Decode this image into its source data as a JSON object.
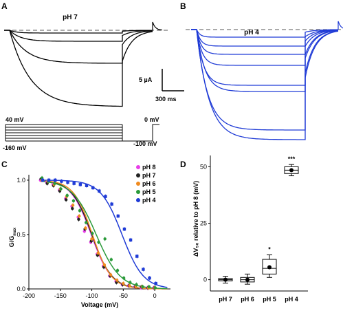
{
  "panels": {
    "a": {
      "letter": "A",
      "title": "pH 7"
    },
    "b": {
      "letter": "B",
      "title": "pH 4"
    },
    "c": {
      "letter": "C"
    },
    "d": {
      "letter": "D"
    }
  },
  "scale_bar": {
    "current": "5 µA",
    "time": "300 ms"
  },
  "protocol": {
    "v_start": "40 mV",
    "v_end": "-160 mV",
    "v_tail": "0 mV",
    "v_hold": "-100 mV"
  },
  "colors": {
    "ph8": "#e83ee8",
    "ph7": "#222222",
    "ph6": "#f08a1e",
    "ph5": "#2a9a3a",
    "ph4": "#1f3bd6",
    "trace_a": "#000000",
    "trace_b": "#1f3bd6"
  },
  "chart_data": [
    {
      "type": "scatter",
      "panel": "C",
      "xlabel": "Voltage (mV)",
      "ylabel_main": "G/G",
      "ylabel_sub": "max",
      "xlim": [
        -200,
        25
      ],
      "ylim": [
        0,
        1.05
      ],
      "xticks": [
        -200,
        -150,
        -100,
        -50,
        0
      ],
      "yticks": [
        0.0,
        0.5,
        1.0
      ],
      "xtick_labels": [
        "-200",
        "-150",
        "-100",
        "-50",
        "0"
      ],
      "ytick_labels": [
        "0.0",
        "0.5",
        "1.0"
      ],
      "legend_position": "top-right",
      "series": [
        {
          "name": "pH 8",
          "color": "#e83ee8",
          "v_half": -101,
          "slope": 16,
          "x": [
            -180,
            -170,
            -160,
            -150,
            -140,
            -130,
            -120,
            -110,
            -100,
            -90,
            -80,
            -70,
            -60,
            -50,
            -40,
            -30,
            -20,
            -10,
            0
          ],
          "y": [
            1.0,
            0.98,
            0.96,
            0.91,
            0.83,
            0.76,
            0.66,
            0.53,
            0.43,
            0.32,
            0.21,
            0.12,
            0.07,
            0.04,
            0.03,
            0.02,
            0.01,
            0.01,
            0.01
          ]
        },
        {
          "name": "pH 7",
          "color": "#222222",
          "v_half": -100,
          "slope": 16,
          "x": [
            -180,
            -170,
            -160,
            -150,
            -140,
            -130,
            -120,
            -110,
            -100,
            -90,
            -80,
            -70,
            -60,
            -50,
            -40,
            -30,
            -20,
            -10,
            0
          ],
          "y": [
            1.01,
            0.97,
            0.95,
            0.9,
            0.82,
            0.74,
            0.64,
            0.55,
            0.44,
            0.31,
            0.2,
            0.12,
            0.06,
            0.04,
            0.03,
            0.02,
            0.02,
            0.01,
            0.01
          ]
        },
        {
          "name": "pH 6",
          "color": "#f08a1e",
          "v_half": -99,
          "slope": 15,
          "x": [
            -180,
            -170,
            -160,
            -150,
            -140,
            -130,
            -120,
            -110,
            -100,
            -90,
            -80,
            -70,
            -60,
            -50,
            -40,
            -30,
            -20,
            -10,
            0
          ],
          "y": [
            1.0,
            0.99,
            0.96,
            0.92,
            0.85,
            0.77,
            0.67,
            0.56,
            0.46,
            0.33,
            0.22,
            0.13,
            0.08,
            0.05,
            0.03,
            0.02,
            0.02,
            0.01,
            0.01
          ]
        },
        {
          "name": "pH 5",
          "color": "#2a9a3a",
          "v_half": -93,
          "slope": 19,
          "x": [
            -180,
            -170,
            -160,
            -150,
            -140,
            -130,
            -120,
            -110,
            -100,
            -90,
            -80,
            -70,
            -60,
            -50,
            -40,
            -30,
            -20,
            -10,
            0
          ],
          "y": [
            1.02,
            0.99,
            0.97,
            0.92,
            0.86,
            0.81,
            0.72,
            0.61,
            0.51,
            0.43,
            0.46,
            0.27,
            0.17,
            0.1,
            0.06,
            0.04,
            0.02,
            0.02,
            0.01
          ]
        },
        {
          "name": "pH 4",
          "color": "#1f3bd6",
          "v_half": -52,
          "slope": 17,
          "x": [
            -180,
            -170,
            -160,
            -150,
            -140,
            -130,
            -120,
            -110,
            -100,
            -90,
            -80,
            -70,
            -60,
            -50,
            -40,
            -30,
            -20,
            -10,
            0
          ],
          "y": [
            1.0,
            1.0,
            1.0,
            0.99,
            0.98,
            0.97,
            0.96,
            0.95,
            0.93,
            0.9,
            0.85,
            0.78,
            0.67,
            0.55,
            0.45,
            0.3,
            0.18,
            0.1,
            0.05
          ]
        }
      ]
    },
    {
      "type": "box",
      "panel": "D",
      "ylabel": "ΔV₅₀ relative to pH 8 (mV)",
      "ylim": [
        -5,
        55
      ],
      "yticks": [
        0,
        25,
        50
      ],
      "ytick_labels": [
        "0",
        "25",
        "50"
      ],
      "categories": [
        "pH 7",
        "pH 6",
        "pH 5",
        "pH 4"
      ],
      "boxes": [
        {
          "label": "pH 7",
          "min": -1.5,
          "q1": -0.5,
          "median": 0,
          "q3": 0.5,
          "max": 1.5,
          "mean": 0,
          "sig": ""
        },
        {
          "label": "pH 6",
          "min": -2,
          "q1": -1,
          "median": 0,
          "q3": 1,
          "max": 2.5,
          "mean": 0,
          "sig": ""
        },
        {
          "label": "pH 5",
          "min": 1,
          "q1": 2.5,
          "median": 5,
          "q3": 9,
          "max": 11,
          "mean": 5.5,
          "sig": "*"
        },
        {
          "label": "pH 4",
          "min": 46,
          "q1": 47,
          "median": 48.5,
          "q3": 50,
          "max": 51,
          "mean": 48.5,
          "sig": "***"
        }
      ]
    }
  ]
}
